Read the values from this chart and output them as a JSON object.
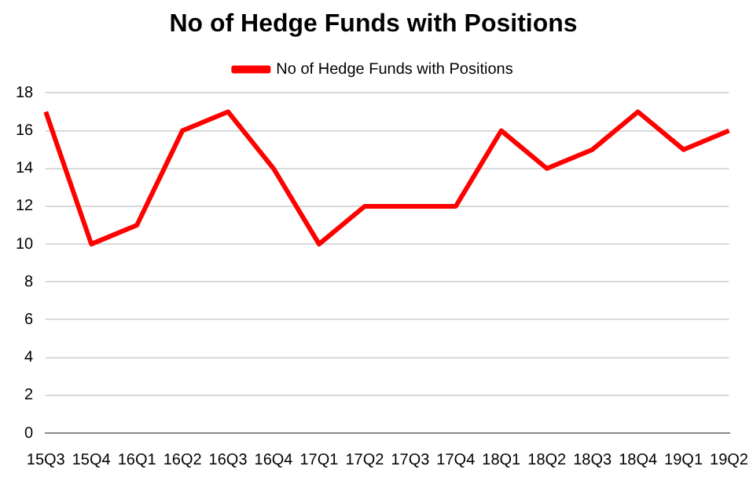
{
  "chart_data": {
    "type": "line",
    "title": "No of Hedge Funds with Positions",
    "categories": [
      "15Q3",
      "15Q4",
      "16Q1",
      "16Q2",
      "16Q3",
      "16Q4",
      "17Q1",
      "17Q2",
      "17Q3",
      "17Q4",
      "18Q1",
      "18Q2",
      "18Q3",
      "18Q4",
      "19Q1",
      "19Q2"
    ],
    "series": [
      {
        "name": "No of Hedge Funds with Positions",
        "color": "#ff0000",
        "values": [
          17,
          10,
          11,
          16,
          17,
          14,
          10,
          12,
          12,
          12,
          16,
          14,
          15,
          17,
          15,
          16
        ]
      }
    ],
    "ylim": [
      0,
      18
    ],
    "yticks": [
      0,
      2,
      4,
      6,
      8,
      10,
      12,
      14,
      16,
      18
    ],
    "grid": "y",
    "legend": "top",
    "marker": "none",
    "line_style": "solid"
  }
}
